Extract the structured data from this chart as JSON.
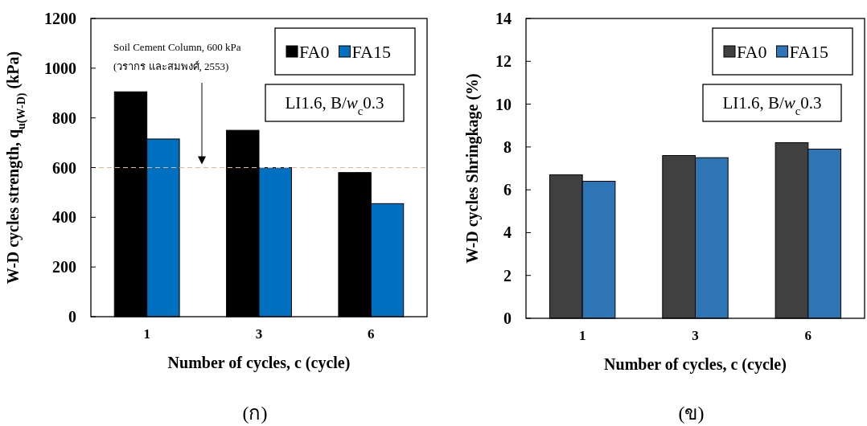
{
  "chart_data": [
    {
      "type": "bar",
      "categories": [
        "1",
        "3",
        "6"
      ],
      "xlabel": "Number of cycles, c (cycle)",
      "ylabel": "W-D cycles strength, q$_{u(W-D)}$ (kPa)",
      "series": [
        {
          "name": "FA0",
          "color": "#000000",
          "values": [
            905,
            750,
            580
          ]
        },
        {
          "name": "FA15",
          "color": "#0070c0",
          "values": [
            715,
            600,
            455
          ]
        }
      ],
      "ylim": [
        0,
        1200
      ],
      "yticks": [
        0,
        200,
        400,
        600,
        800,
        1000,
        1200
      ],
      "legend": "top right",
      "ref_lines": [
        {
          "axis": "y",
          "value": 600,
          "color": "#f4b183",
          "line_style": "dashed"
        }
      ],
      "annotations": [
        "Soil Cement Column, 600 kPa",
        "(วรากร และสมพงศ์, 2553)",
        "LI1.6, B/*w*$_{c}$0.3",
        "(ก)"
      ]
    },
    {
      "type": "bar",
      "categories": [
        "1",
        "3",
        "6"
      ],
      "xlabel": "Number of cycles, c (cycle)",
      "ylabel": "W-D cycles Shringkage (%)",
      "series": [
        {
          "name": "FA0",
          "color": "#404040",
          "values": [
            6.7,
            7.6,
            8.2
          ]
        },
        {
          "name": "FA15",
          "color": "#2e75b6",
          "values": [
            6.4,
            7.5,
            7.9
          ]
        }
      ],
      "ylim": [
        0,
        14
      ],
      "yticks": [
        0,
        2,
        4,
        6,
        8,
        10,
        12,
        14
      ],
      "legend": "top right",
      "annotations": [
        "LI1.6, B/*w*$_{c}$0.3",
        "(ข)"
      ]
    }
  ]
}
